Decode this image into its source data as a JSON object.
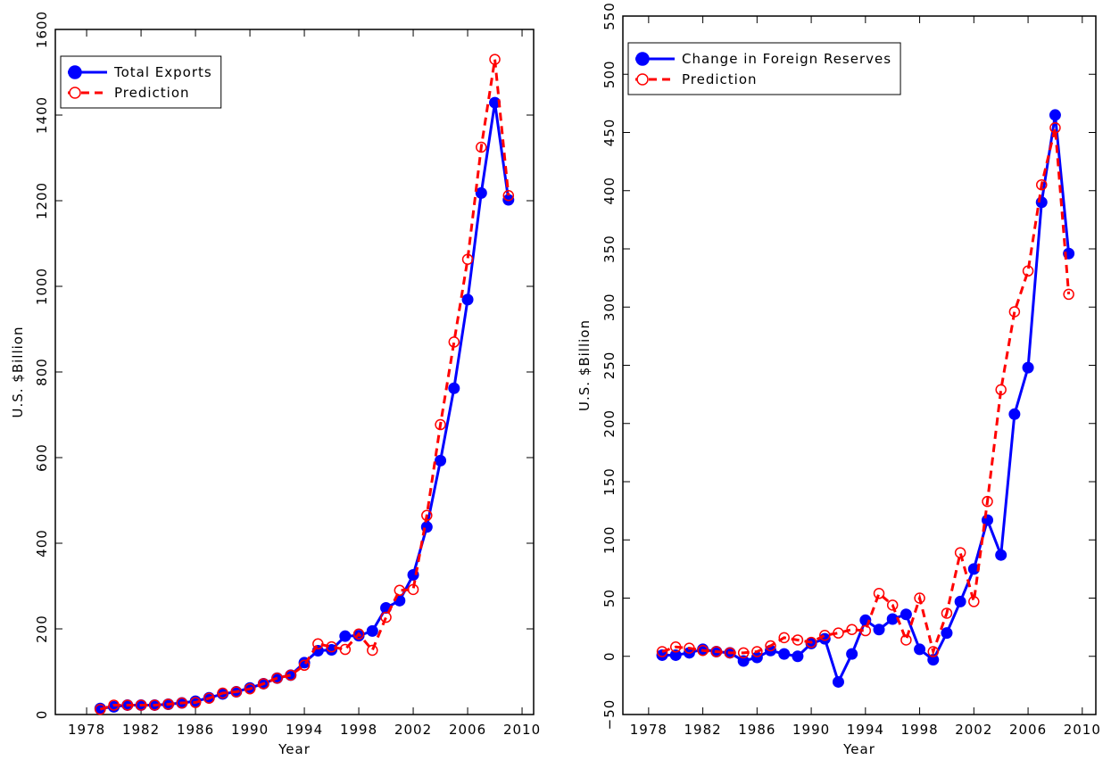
{
  "chart_data": [
    {
      "type": "line",
      "xlabel": "Year",
      "ylabel": "U.S. $Billion",
      "x": [
        1979,
        1980,
        1981,
        1982,
        1983,
        1984,
        1985,
        1986,
        1987,
        1988,
        1989,
        1990,
        1991,
        1992,
        1993,
        1994,
        1995,
        1996,
        1997,
        1998,
        1999,
        2000,
        2001,
        2002,
        2003,
        2004,
        2005,
        2006,
        2007,
        2008,
        2009
      ],
      "series": [
        {
          "name": "Total Exports",
          "color": "#0000ff",
          "linestyle": "solid",
          "marker": "filled",
          "values": [
            14,
            18,
            22,
            22,
            22,
            24,
            27,
            31,
            39,
            48,
            53,
            62,
            72,
            85,
            92,
            121,
            149,
            151,
            183,
            184,
            195,
            249,
            266,
            326,
            438,
            593,
            762,
            969,
            1218,
            1429,
            1202
          ]
        },
        {
          "name": "Prediction",
          "color": "#ff0000",
          "linestyle": "dashed",
          "marker": "open",
          "values": [
            12,
            22,
            22,
            22,
            22,
            24,
            27,
            28,
            38,
            50,
            53,
            60,
            72,
            85,
            92,
            115,
            165,
            158,
            152,
            188,
            150,
            227,
            290,
            292,
            465,
            677,
            870,
            1063,
            1325,
            1530,
            1212
          ]
        }
      ],
      "xlim": [
        1975.7,
        2010.85
      ],
      "xticks": [
        1978,
        1982,
        1986,
        1990,
        1994,
        1998,
        2002,
        2006,
        2010
      ],
      "ylim": [
        0,
        1600
      ],
      "yticks": [
        0,
        200,
        400,
        600,
        800,
        1000,
        1200,
        1400,
        1600
      ],
      "legend": "upper left",
      "grid": false
    },
    {
      "type": "line",
      "xlabel": "Year",
      "ylabel": "U.S. $Billion",
      "x": [
        1979,
        1980,
        1981,
        1982,
        1983,
        1984,
        1985,
        1986,
        1987,
        1988,
        1989,
        1990,
        1991,
        1992,
        1993,
        1994,
        1995,
        1996,
        1997,
        1998,
        1999,
        2000,
        2001,
        2002,
        2003,
        2004,
        2005,
        2006,
        2007,
        2008,
        2009
      ],
      "series": [
        {
          "name": "Change in Foreign Reserves",
          "color": "#0000ff",
          "linestyle": "solid",
          "marker": "filled",
          "values": [
            1,
            1,
            3,
            6,
            4,
            3,
            -4,
            -1,
            5,
            2,
            0,
            11,
            15,
            -22,
            2,
            31,
            23,
            32,
            36,
            6,
            -3,
            20,
            47,
            75,
            117,
            87,
            208,
            248,
            390,
            465,
            346
          ]
        },
        {
          "name": "Prediction",
          "color": "#ff0000",
          "linestyle": "dashed",
          "marker": "open",
          "values": [
            4,
            8,
            7,
            5,
            4,
            3,
            3,
            4,
            9,
            16,
            14,
            12,
            18,
            20,
            23,
            22,
            54,
            44,
            14,
            50,
            4,
            37,
            89,
            47,
            133,
            229,
            296,
            331,
            405,
            454,
            311
          ]
        }
      ],
      "xlim": [
        1976.1,
        2011.0
      ],
      "xticks": [
        1978,
        1982,
        1986,
        1990,
        1994,
        1998,
        2002,
        2006,
        2010
      ],
      "ylim": [
        -50,
        550
      ],
      "yticks": [
        {
          "value": -50,
          "label": "−50"
        },
        0,
        50,
        100,
        150,
        200,
        250,
        300,
        350,
        400,
        450,
        500,
        550
      ],
      "legend": "upper left",
      "grid": false
    }
  ]
}
